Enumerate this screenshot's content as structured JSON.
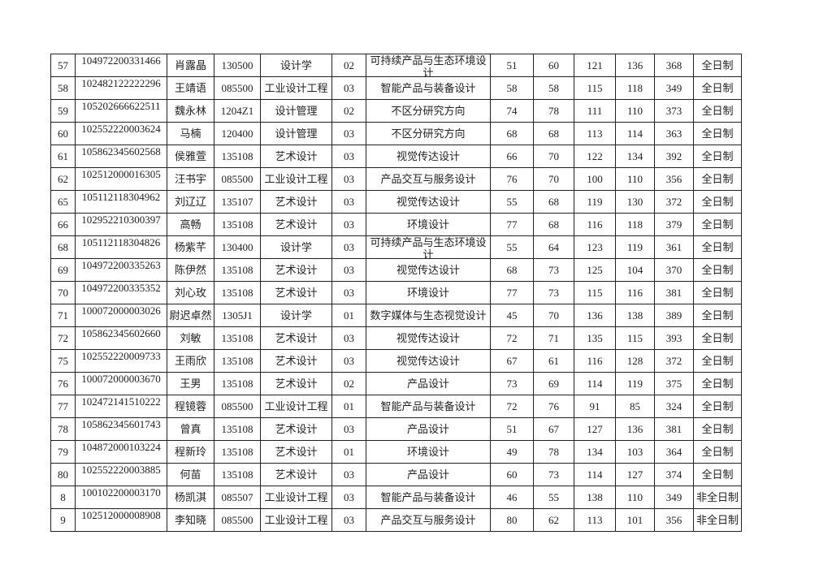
{
  "table": {
    "rows": [
      [
        "57",
        "104972200331466",
        "肖露晶",
        "130500",
        "设计学",
        "02",
        "可持续产品与生态环境设计",
        "51",
        "60",
        "121",
        "136",
        "368",
        "全日制"
      ],
      [
        "58",
        "102482122222296",
        "王靖语",
        "085500",
        "工业设计工程",
        "03",
        "智能产品与装备设计",
        "58",
        "58",
        "115",
        "118",
        "349",
        "全日制"
      ],
      [
        "59",
        "105202666622511",
        "魏永林",
        "1204Z1",
        "设计管理",
        "02",
        "不区分研究方向",
        "74",
        "78",
        "111",
        "110",
        "373",
        "全日制"
      ],
      [
        "60",
        "102552220003624",
        "马楠",
        "120400",
        "设计管理",
        "03",
        "不区分研究方向",
        "68",
        "68",
        "113",
        "114",
        "363",
        "全日制"
      ],
      [
        "61",
        "105862345602568",
        "侯雅萱",
        "135108",
        "艺术设计",
        "03",
        "视觉传达设计",
        "66",
        "70",
        "122",
        "134",
        "392",
        "全日制"
      ],
      [
        "62",
        "102512000016305",
        "汪书宇",
        "085500",
        "工业设计工程",
        "03",
        "产品交互与服务设计",
        "76",
        "70",
        "100",
        "110",
        "356",
        "全日制"
      ],
      [
        "65",
        "105112118304962",
        "刘辽辽",
        "135107",
        "艺术设计",
        "03",
        "视觉传达设计",
        "55",
        "68",
        "119",
        "130",
        "372",
        "全日制"
      ],
      [
        "66",
        "102952210300397",
        "高畅",
        "135108",
        "艺术设计",
        "03",
        "环境设计",
        "77",
        "68",
        "116",
        "118",
        "379",
        "全日制"
      ],
      [
        "68",
        "105112118304826",
        "杨紫芊",
        "130400",
        "设计学",
        "03",
        "可持续产品与生态环境设计",
        "55",
        "64",
        "123",
        "119",
        "361",
        "全日制"
      ],
      [
        "69",
        "104972200335263",
        "陈伊然",
        "135108",
        "艺术设计",
        "03",
        "视觉传达设计",
        "68",
        "73",
        "125",
        "104",
        "370",
        "全日制"
      ],
      [
        "70",
        "104972200335352",
        "刘心玫",
        "135108",
        "艺术设计",
        "03",
        "环境设计",
        "77",
        "73",
        "115",
        "116",
        "381",
        "全日制"
      ],
      [
        "71",
        "100072000003026",
        "尉迟卓然",
        "1305J1",
        "设计学",
        "01",
        "数字媒体与生态视觉设计",
        "45",
        "70",
        "136",
        "138",
        "389",
        "全日制"
      ],
      [
        "72",
        "105862345602660",
        "刘敏",
        "135108",
        "艺术设计",
        "03",
        "视觉传达设计",
        "72",
        "71",
        "135",
        "115",
        "393",
        "全日制"
      ],
      [
        "75",
        "102552220009733",
        "王雨欣",
        "135108",
        "艺术设计",
        "03",
        "视觉传达设计",
        "67",
        "61",
        "116",
        "128",
        "372",
        "全日制"
      ],
      [
        "76",
        "100072000003670",
        "王男",
        "135108",
        "艺术设计",
        "02",
        "产品设计",
        "73",
        "69",
        "114",
        "119",
        "375",
        "全日制"
      ],
      [
        "77",
        "102472141510222",
        "程镜蓉",
        "085500",
        "工业设计工程",
        "01",
        "智能产品与装备设计",
        "72",
        "76",
        "91",
        "85",
        "324",
        "全日制"
      ],
      [
        "78",
        "105862345601743",
        "曾真",
        "135108",
        "艺术设计",
        "03",
        "产品设计",
        "51",
        "67",
        "127",
        "136",
        "381",
        "全日制"
      ],
      [
        "79",
        "104872000103224",
        "程新玲",
        "135108",
        "艺术设计",
        "01",
        "环境设计",
        "49",
        "78",
        "134",
        "103",
        "364",
        "全日制"
      ],
      [
        "80",
        "102552220003885",
        "何苗",
        "135108",
        "艺术设计",
        "03",
        "产品设计",
        "60",
        "73",
        "114",
        "127",
        "374",
        "全日制"
      ],
      [
        "8",
        "100102200003170",
        "杨凯淇",
        "085507",
        "工业设计工程",
        "03",
        "智能产品与装备设计",
        "46",
        "55",
        "138",
        "110",
        "349",
        "非全日制"
      ],
      [
        "9",
        "102512000008908",
        "李知晓",
        "085500",
        "工业设计工程",
        "03",
        "产品交互与服务设计",
        "80",
        "62",
        "113",
        "101",
        "356",
        "非全日制"
      ]
    ]
  }
}
